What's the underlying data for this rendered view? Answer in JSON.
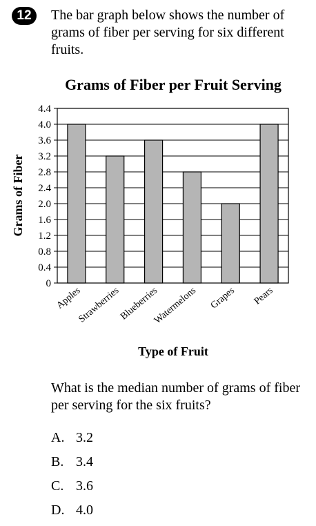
{
  "question": {
    "number": "12",
    "prompt": "The bar graph below shows the number of grams of fiber per serving for six different fruits.",
    "followup": "What is the median number of grams of fiber per serving for the six fruits?",
    "choices": [
      {
        "letter": "A.",
        "text": "3.2"
      },
      {
        "letter": "B.",
        "text": "3.4"
      },
      {
        "letter": "C.",
        "text": "3.6"
      },
      {
        "letter": "D.",
        "text": "4.0"
      }
    ]
  },
  "chart_data": {
    "type": "bar",
    "title": "Grams of Fiber per Fruit Serving",
    "xlabel": "Type of Fruit",
    "ylabel": "Grams of Fiber",
    "categories": [
      "Apples",
      "Strawberries",
      "Blueberries",
      "Watermelons",
      "Grapes",
      "Pears"
    ],
    "values": [
      4.0,
      3.2,
      3.6,
      2.8,
      2.0,
      4.0
    ],
    "ylim": [
      0,
      4.4
    ],
    "yticks": [
      "0",
      "0.4",
      "0.8",
      "1.2",
      "1.6",
      "2.0",
      "2.4",
      "2.8",
      "3.2",
      "3.6",
      "4.0",
      "4.4"
    ],
    "grid": true,
    "bar_color": "#b5b5b5"
  }
}
